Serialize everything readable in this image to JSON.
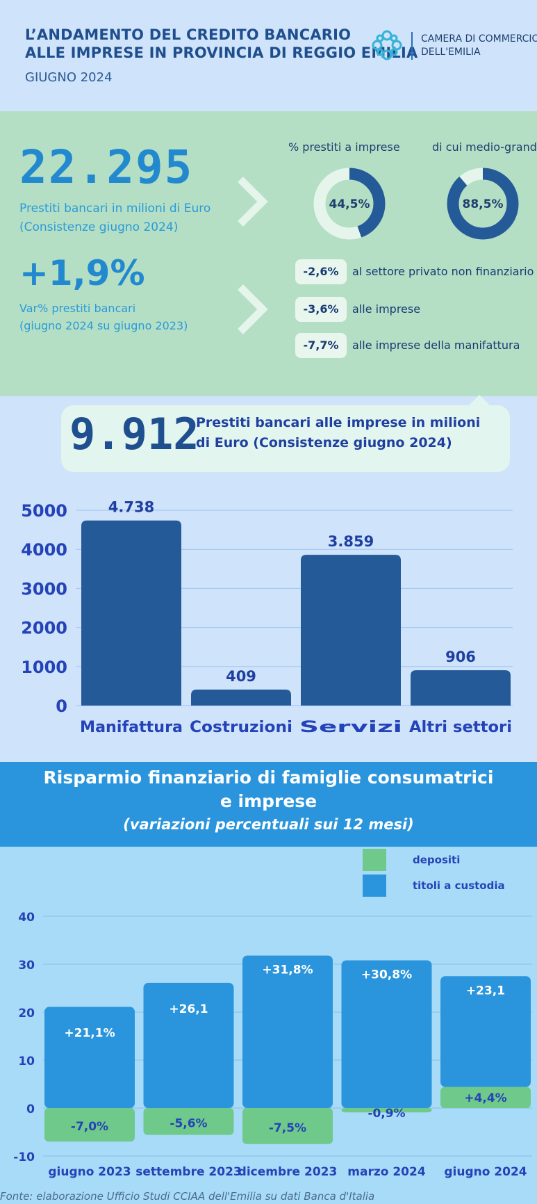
{
  "header": {
    "title_line1": "L’ANDAMENTO DEL CREDITO BANCARIO",
    "title_line2": "ALLE IMPRESE IN PROVINCIA DI REGGIO EMILIA",
    "subtitle": "GIUGNO 2024",
    "org_line1": "CAMERA DI COMMERCIO",
    "org_line2": "DELL'EMILIA",
    "logo_icon": "chamber-of-commerce-logo",
    "accent_color": "#2b6fb5"
  },
  "summary": {
    "loans_value": "22.295",
    "loans_label_line1": "Prestiti bancari in milioni di Euro",
    "loans_label_line2": "(Consistenze giugno 2024)",
    "change_value": "+1,9%",
    "change_label_line1": "Var% prestiti bancari",
    "change_label_line2": "(giugno 2024 su giugno 2023)",
    "donuts": [
      {
        "label": "%  prestiti a imprese",
        "value": "44,5%",
        "fraction": 0.445
      },
      {
        "label": "di cui medio-grandi",
        "value": "88,5%",
        "fraction": 0.885
      }
    ],
    "changes": [
      {
        "value": "-2,6%",
        "label": "al settore privato non finanziario"
      },
      {
        "value": "-3,6%",
        "label": "alle imprese"
      },
      {
        "value": "-7,7%",
        "label": "alle imprese della manifattura"
      }
    ],
    "green_bg": "#b4dfc5",
    "blue_text": "#2289cf"
  },
  "callout": {
    "value": "9.912",
    "text_line1": "Prestiti bancari alle imprese in milioni",
    "text_line2": "di Euro (Consistenze giugno 2024)"
  },
  "chart_data": [
    {
      "type": "bar",
      "categories": [
        "Manifattura",
        "Costruzioni",
        "Servizi",
        "Altri settori"
      ],
      "values": [
        4738,
        409,
        3859,
        906
      ],
      "value_labels": [
        "4.738",
        "409",
        "3.859",
        "906"
      ],
      "yticks": [
        "0",
        "1000",
        "2000",
        "3000",
        "4000",
        "5000"
      ],
      "ylim": [
        0,
        5000
      ],
      "grid": true,
      "bar_color": "#245a98"
    },
    {
      "type": "bar",
      "title": "Risparmio finanziario di famiglie consumatrici",
      "title_line2": "e imprese",
      "subtitle": "(variazioni percentuali sui 12 mesi)",
      "categories": [
        "giugno 2023",
        "settembre 2023",
        "dicembre 2023",
        "marzo 2024",
        "giugno 2024"
      ],
      "series": [
        {
          "name": "depositi",
          "values": [
            -7.0,
            -5.6,
            -7.5,
            -0.9,
            4.4
          ],
          "labels": [
            "-7,0%",
            "-5,6%",
            "-7,5%",
            "-0,9%",
            "+4,4%"
          ],
          "color": "#6fc98a"
        },
        {
          "name": "titoli a custodia",
          "values": [
            21.1,
            26.1,
            31.8,
            30.8,
            23.1
          ],
          "labels": [
            "+21,1%",
            "+26,1",
            "+31,8%",
            "+30,8%",
            "+23,1"
          ],
          "color": "#2a95dc"
        }
      ],
      "yticks": [
        "-10",
        "0",
        "10",
        "20",
        "30",
        "40"
      ],
      "ylim": [
        -10,
        40
      ],
      "grid": true,
      "legend": "top-right"
    }
  ],
  "source": "Fonte: elaborazione Ufficio Studi CCIAA dell'Emilia su dati Banca d'Italia"
}
